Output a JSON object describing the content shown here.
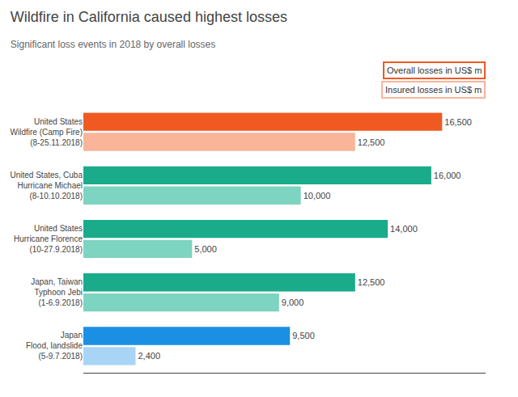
{
  "chart_data": {
    "type": "bar",
    "orientation": "horizontal",
    "title": "Wildfire in California caused highest losses",
    "subtitle": "Significant loss events in 2018 by overall losses",
    "categories": [
      "United States\nWildfire (Camp Fire)\n(8-25.11.2018)",
      "United States, Cuba\nHurricane Michael\n(8-10.10.2018)",
      "United States\nHurricane Florence\n(10-27.9.2018)",
      "Japan, Taiwan\nTyphoon Jebi\n(1-6.9.2018)",
      "Japan\nFlood, landslide\n(5-9.7.2018)"
    ],
    "series": [
      {
        "name": "Overall losses in US$ m",
        "colors": [
          "#f05a22",
          "#1aab8a",
          "#1aab8a",
          "#1aab8a",
          "#1a8fe3"
        ],
        "values": [
          16500,
          16000,
          14000,
          12500,
          9500
        ],
        "value_labels": [
          "16,500",
          "16,000",
          "14,000",
          "12,500",
          "9,500"
        ]
      },
      {
        "name": "Insured losses in US$ m",
        "colors": [
          "#f9b49a",
          "#7dd4c0",
          "#7dd4c0",
          "#7dd4c0",
          "#a8d4f5"
        ],
        "values": [
          12500,
          10000,
          5000,
          9000,
          2400
        ],
        "value_labels": [
          "12,500",
          "10,000",
          "5,000",
          "9,000",
          "2,400"
        ]
      }
    ],
    "xlim": [
      0,
      18500
    ],
    "data_labels": true,
    "tick_labels": "y",
    "grid": false
  }
}
